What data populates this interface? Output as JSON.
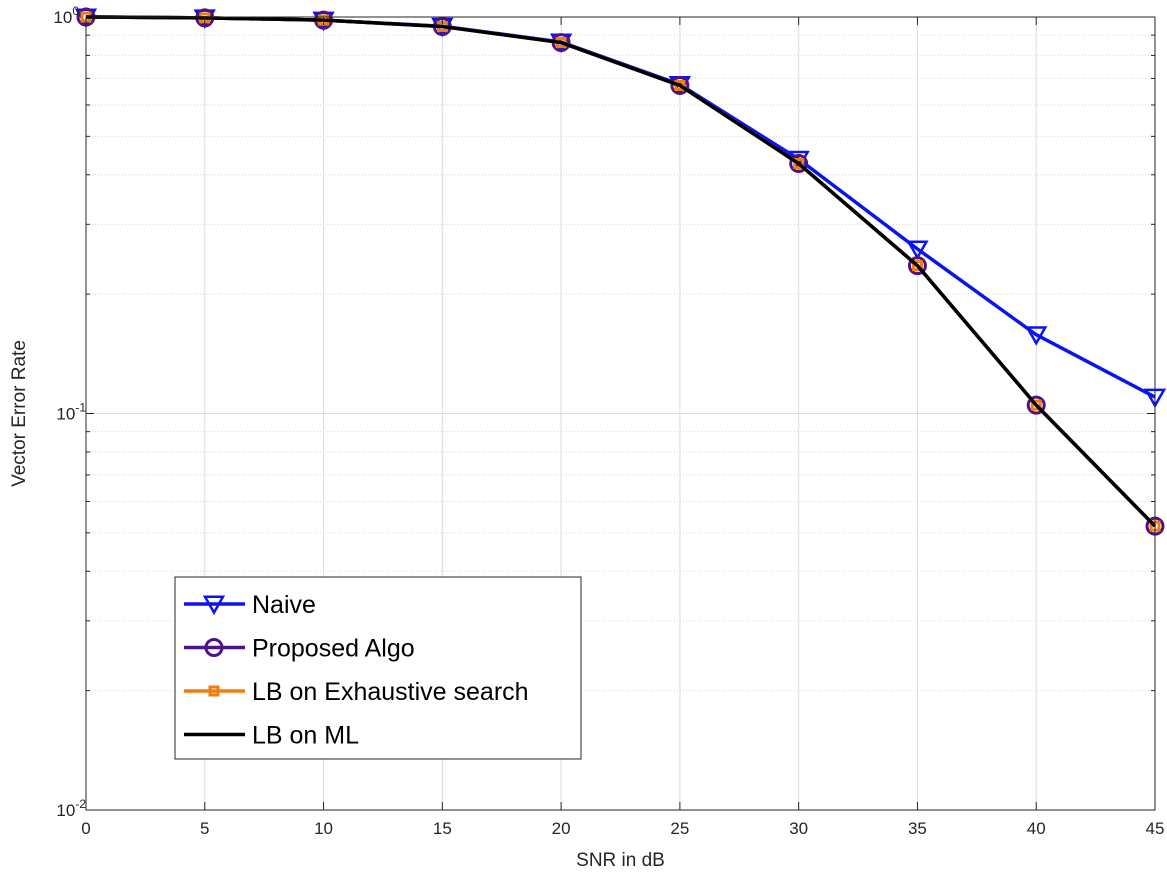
{
  "chart_data": {
    "type": "line",
    "xlabel": "SNR in dB",
    "ylabel": "Vector Error Rate",
    "xlim": [
      0,
      45
    ],
    "ylim": [
      0.01,
      1
    ],
    "yscale": "log",
    "grid": true,
    "x": [
      0,
      5,
      10,
      15,
      20,
      25,
      30,
      35,
      40,
      45
    ],
    "x_ticks": [
      "0",
      "5",
      "10",
      "15",
      "20",
      "25",
      "30",
      "35",
      "40",
      "45"
    ],
    "y_ticks": [
      {
        "value": 1,
        "base": "10",
        "exp": "0"
      },
      {
        "value": 0.1,
        "base": "10",
        "exp": "-1"
      },
      {
        "value": 0.01,
        "base": "10",
        "exp": "-2"
      }
    ],
    "legend_position": "bottom-left",
    "series": [
      {
        "name": "Naive",
        "color": "#0a14f0",
        "marker": "triangle-down",
        "values": [
          1.0,
          0.995,
          0.982,
          0.948,
          0.865,
          0.676,
          0.438,
          0.26,
          0.158,
          0.11
        ]
      },
      {
        "name": "Proposed Algo",
        "color": "#4b1385",
        "marker": "circle",
        "values": [
          1.0,
          0.995,
          0.982,
          0.946,
          0.862,
          0.672,
          0.427,
          0.236,
          0.105,
          0.052
        ]
      },
      {
        "name": "LB on Exhaustive search",
        "color": "#f27c0f",
        "marker": "square",
        "values": [
          1.0,
          0.995,
          0.982,
          0.946,
          0.862,
          0.672,
          0.427,
          0.236,
          0.105,
          0.052
        ]
      },
      {
        "name": "LB on ML",
        "color": "#000000",
        "marker": "none",
        "values": [
          1.0,
          0.995,
          0.982,
          0.946,
          0.862,
          0.672,
          0.427,
          0.236,
          0.105,
          0.052
        ]
      }
    ]
  }
}
